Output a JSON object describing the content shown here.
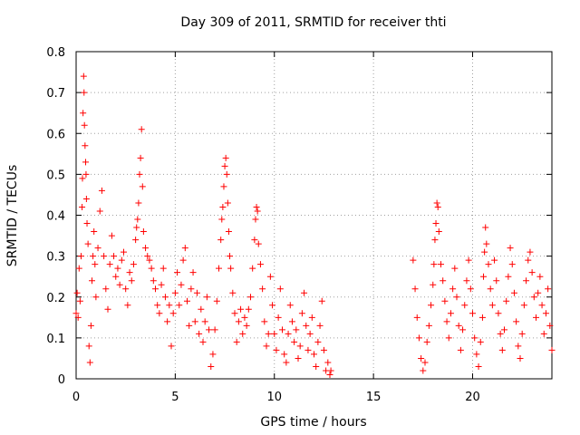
{
  "chart_data": {
    "type": "scatter",
    "title": "Day 309 of 2011, SRMTID for receiver thti",
    "xlabel": "GPS time / hours",
    "ylabel": "SRMTID / TECUs",
    "xlim": [
      0,
      24
    ],
    "ylim": [
      0,
      0.8
    ],
    "xticks": [
      0,
      5,
      10,
      15,
      20
    ],
    "yticks": [
      0,
      0.1,
      0.2,
      0.3,
      0.4,
      0.5,
      0.6,
      0.7,
      0.8
    ],
    "xtick_labels": [
      "0",
      "5",
      "10",
      "15",
      "20"
    ],
    "ytick_labels": [
      "0",
      "0.1",
      "0.2",
      "0.3",
      "0.4",
      "0.5",
      "0.6",
      "0.7",
      "0.8"
    ],
    "grid": true,
    "marker": "+",
    "color": "#ff0000",
    "series": [
      {
        "name": "SRMTID",
        "points": [
          [
            0.0,
            0.16
          ],
          [
            0.05,
            0.21
          ],
          [
            0.1,
            0.15
          ],
          [
            0.15,
            0.27
          ],
          [
            0.2,
            0.19
          ],
          [
            0.25,
            0.3
          ],
          [
            0.3,
            0.42
          ],
          [
            0.32,
            0.49
          ],
          [
            0.35,
            0.65
          ],
          [
            0.38,
            0.74
          ],
          [
            0.4,
            0.7
          ],
          [
            0.42,
            0.62
          ],
          [
            0.45,
            0.57
          ],
          [
            0.48,
            0.53
          ],
          [
            0.5,
            0.5
          ],
          [
            0.52,
            0.44
          ],
          [
            0.55,
            0.38
          ],
          [
            0.6,
            0.33
          ],
          [
            0.65,
            0.08
          ],
          [
            0.7,
            0.04
          ],
          [
            0.75,
            0.13
          ],
          [
            0.8,
            0.24
          ],
          [
            0.85,
            0.3
          ],
          [
            0.9,
            0.36
          ],
          [
            0.95,
            0.28
          ],
          [
            1.0,
            0.2
          ],
          [
            1.1,
            0.32
          ],
          [
            1.2,
            0.41
          ],
          [
            1.3,
            0.46
          ],
          [
            1.4,
            0.3
          ],
          [
            1.5,
            0.22
          ],
          [
            1.6,
            0.17
          ],
          [
            1.7,
            0.28
          ],
          [
            1.8,
            0.35
          ],
          [
            1.9,
            0.3
          ],
          [
            2.0,
            0.25
          ],
          [
            2.1,
            0.27
          ],
          [
            2.2,
            0.23
          ],
          [
            2.3,
            0.29
          ],
          [
            2.4,
            0.31
          ],
          [
            2.5,
            0.22
          ],
          [
            2.6,
            0.18
          ],
          [
            2.7,
            0.26
          ],
          [
            2.8,
            0.24
          ],
          [
            2.9,
            0.28
          ],
          [
            3.0,
            0.34
          ],
          [
            3.05,
            0.37
          ],
          [
            3.1,
            0.39
          ],
          [
            3.15,
            0.43
          ],
          [
            3.2,
            0.5
          ],
          [
            3.25,
            0.54
          ],
          [
            3.3,
            0.61
          ],
          [
            3.35,
            0.47
          ],
          [
            3.4,
            0.36
          ],
          [
            3.5,
            0.32
          ],
          [
            3.6,
            0.3
          ],
          [
            3.7,
            0.29
          ],
          [
            3.8,
            0.27
          ],
          [
            3.9,
            0.24
          ],
          [
            4.0,
            0.22
          ],
          [
            4.1,
            0.18
          ],
          [
            4.2,
            0.16
          ],
          [
            4.3,
            0.23
          ],
          [
            4.4,
            0.27
          ],
          [
            4.5,
            0.2
          ],
          [
            4.6,
            0.14
          ],
          [
            4.7,
            0.18
          ],
          [
            4.8,
            0.08
          ],
          [
            4.9,
            0.16
          ],
          [
            5.0,
            0.21
          ],
          [
            5.1,
            0.26
          ],
          [
            5.2,
            0.18
          ],
          [
            5.3,
            0.23
          ],
          [
            5.4,
            0.29
          ],
          [
            5.5,
            0.32
          ],
          [
            5.6,
            0.19
          ],
          [
            5.7,
            0.13
          ],
          [
            5.8,
            0.22
          ],
          [
            5.9,
            0.26
          ],
          [
            6.0,
            0.14
          ],
          [
            6.1,
            0.21
          ],
          [
            6.2,
            0.11
          ],
          [
            6.3,
            0.17
          ],
          [
            6.4,
            0.09
          ],
          [
            6.5,
            0.14
          ],
          [
            6.6,
            0.2
          ],
          [
            6.7,
            0.12
          ],
          [
            6.8,
            0.03
          ],
          [
            6.9,
            0.06
          ],
          [
            7.0,
            0.12
          ],
          [
            7.1,
            0.19
          ],
          [
            7.2,
            0.27
          ],
          [
            7.3,
            0.34
          ],
          [
            7.35,
            0.39
          ],
          [
            7.4,
            0.42
          ],
          [
            7.45,
            0.47
          ],
          [
            7.5,
            0.52
          ],
          [
            7.55,
            0.54
          ],
          [
            7.6,
            0.5
          ],
          [
            7.65,
            0.43
          ],
          [
            7.7,
            0.36
          ],
          [
            7.75,
            0.3
          ],
          [
            7.8,
            0.27
          ],
          [
            7.9,
            0.21
          ],
          [
            8.0,
            0.16
          ],
          [
            8.1,
            0.09
          ],
          [
            8.2,
            0.14
          ],
          [
            8.3,
            0.17
          ],
          [
            8.4,
            0.11
          ],
          [
            8.5,
            0.15
          ],
          [
            8.6,
            0.13
          ],
          [
            8.7,
            0.17
          ],
          [
            8.8,
            0.2
          ],
          [
            8.9,
            0.27
          ],
          [
            9.0,
            0.34
          ],
          [
            9.05,
            0.39
          ],
          [
            9.1,
            0.42
          ],
          [
            9.15,
            0.41
          ],
          [
            9.2,
            0.33
          ],
          [
            9.3,
            0.28
          ],
          [
            9.4,
            0.22
          ],
          [
            9.5,
            0.14
          ],
          [
            9.6,
            0.08
          ],
          [
            9.7,
            0.11
          ],
          [
            9.8,
            0.25
          ],
          [
            9.9,
            0.18
          ],
          [
            10.0,
            0.11
          ],
          [
            10.1,
            0.07
          ],
          [
            10.2,
            0.15
          ],
          [
            10.3,
            0.22
          ],
          [
            10.4,
            0.12
          ],
          [
            10.5,
            0.06
          ],
          [
            10.6,
            0.04
          ],
          [
            10.7,
            0.11
          ],
          [
            10.8,
            0.18
          ],
          [
            10.9,
            0.14
          ],
          [
            11.0,
            0.09
          ],
          [
            11.1,
            0.12
          ],
          [
            11.2,
            0.05
          ],
          [
            11.3,
            0.08
          ],
          [
            11.4,
            0.16
          ],
          [
            11.5,
            0.21
          ],
          [
            11.6,
            0.13
          ],
          [
            11.7,
            0.07
          ],
          [
            11.8,
            0.11
          ],
          [
            11.9,
            0.15
          ],
          [
            12.0,
            0.06
          ],
          [
            12.1,
            0.03
          ],
          [
            12.2,
            0.09
          ],
          [
            12.3,
            0.13
          ],
          [
            12.4,
            0.19
          ],
          [
            12.5,
            0.07
          ],
          [
            12.6,
            0.02
          ],
          [
            12.7,
            0.04
          ],
          [
            12.8,
            0.01
          ],
          [
            12.85,
            0.02
          ],
          [
            17.0,
            0.29
          ],
          [
            17.1,
            0.22
          ],
          [
            17.2,
            0.15
          ],
          [
            17.3,
            0.1
          ],
          [
            17.4,
            0.05
          ],
          [
            17.5,
            0.02
          ],
          [
            17.6,
            0.04
          ],
          [
            17.7,
            0.09
          ],
          [
            17.8,
            0.13
          ],
          [
            17.9,
            0.18
          ],
          [
            18.0,
            0.23
          ],
          [
            18.05,
            0.28
          ],
          [
            18.1,
            0.34
          ],
          [
            18.15,
            0.38
          ],
          [
            18.2,
            0.43
          ],
          [
            18.25,
            0.42
          ],
          [
            18.3,
            0.36
          ],
          [
            18.4,
            0.28
          ],
          [
            18.5,
            0.24
          ],
          [
            18.6,
            0.19
          ],
          [
            18.7,
            0.14
          ],
          [
            18.8,
            0.1
          ],
          [
            18.9,
            0.16
          ],
          [
            19.0,
            0.22
          ],
          [
            19.1,
            0.27
          ],
          [
            19.2,
            0.2
          ],
          [
            19.3,
            0.13
          ],
          [
            19.4,
            0.07
          ],
          [
            19.5,
            0.12
          ],
          [
            19.6,
            0.18
          ],
          [
            19.7,
            0.24
          ],
          [
            19.8,
            0.29
          ],
          [
            19.9,
            0.22
          ],
          [
            20.0,
            0.16
          ],
          [
            20.1,
            0.1
          ],
          [
            20.2,
            0.06
          ],
          [
            20.3,
            0.03
          ],
          [
            20.4,
            0.09
          ],
          [
            20.5,
            0.15
          ],
          [
            20.55,
            0.25
          ],
          [
            20.6,
            0.31
          ],
          [
            20.65,
            0.37
          ],
          [
            20.7,
            0.33
          ],
          [
            20.8,
            0.28
          ],
          [
            20.9,
            0.22
          ],
          [
            21.0,
            0.18
          ],
          [
            21.1,
            0.29
          ],
          [
            21.2,
            0.24
          ],
          [
            21.3,
            0.16
          ],
          [
            21.4,
            0.11
          ],
          [
            21.5,
            0.07
          ],
          [
            21.6,
            0.12
          ],
          [
            21.7,
            0.19
          ],
          [
            21.8,
            0.25
          ],
          [
            21.9,
            0.32
          ],
          [
            22.0,
            0.28
          ],
          [
            22.1,
            0.21
          ],
          [
            22.2,
            0.14
          ],
          [
            22.3,
            0.08
          ],
          [
            22.4,
            0.05
          ],
          [
            22.5,
            0.11
          ],
          [
            22.6,
            0.18
          ],
          [
            22.7,
            0.24
          ],
          [
            22.8,
            0.29
          ],
          [
            22.9,
            0.31
          ],
          [
            23.0,
            0.26
          ],
          [
            23.1,
            0.2
          ],
          [
            23.2,
            0.15
          ],
          [
            23.3,
            0.21
          ],
          [
            23.4,
            0.25
          ],
          [
            23.5,
            0.18
          ],
          [
            23.6,
            0.11
          ],
          [
            23.7,
            0.16
          ],
          [
            23.8,
            0.22
          ],
          [
            23.9,
            0.13
          ],
          [
            24.0,
            0.07
          ]
        ]
      }
    ]
  }
}
